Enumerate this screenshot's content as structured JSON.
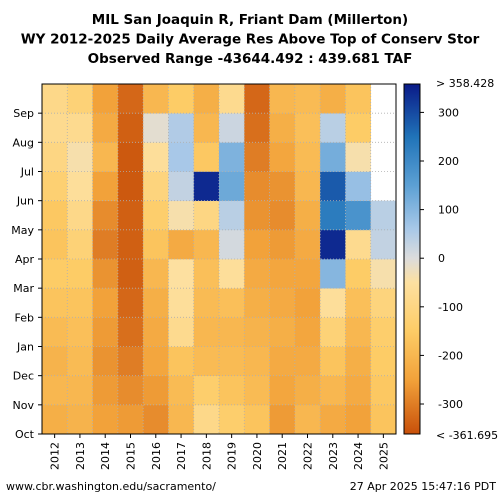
{
  "chart_data": {
    "type": "heatmap",
    "title_lines": [
      "MIL San Joaquin R, Friant Dam (Millerton)",
      "WY 2012-2025 Daily Average Res Above Top of Conserv Stor",
      "Observed Range -43644.492 : 439.681 TAF"
    ],
    "x_categories": [
      "2012",
      "2013",
      "2014",
      "2015",
      "2016",
      "2017",
      "2018",
      "2019",
      "2020",
      "2021",
      "2022",
      "2023",
      "2024",
      "2025"
    ],
    "y_months": [
      "Oct",
      "Nov",
      "Dec",
      "Jan",
      "Feb",
      "Mar",
      "Apr",
      "May",
      "Jun",
      "Jul",
      "Aug",
      "Sep"
    ],
    "colorbar": {
      "min": -361.695,
      "max": 358.428,
      "ticks": [
        300,
        200,
        100,
        0,
        -100,
        -200,
        -300
      ],
      "max_label": "> 358.428",
      "min_label": "< -361.695",
      "colormap_stops": [
        {
          "v": -361.695,
          "c": "#c8500a"
        },
        {
          "v": -250,
          "c": "#f2a23a"
        },
        {
          "v": -150,
          "c": "#fdcc66"
        },
        {
          "v": -50,
          "c": "#fde0a0"
        },
        {
          "v": 0,
          "c": "#dcdcdc"
        },
        {
          "v": 60,
          "c": "#a8c8e8"
        },
        {
          "v": 150,
          "c": "#5ca0d4"
        },
        {
          "v": 250,
          "c": "#2073b8"
        },
        {
          "v": 358.428,
          "c": "#0a1a88"
        }
      ]
    },
    "series": [
      {
        "name": "2012",
        "monthly": [
          -220,
          -200,
          -210,
          -190,
          -170,
          -150,
          -170,
          -160,
          -130,
          -100,
          -80,
          -90
        ]
      },
      {
        "name": "2013",
        "monthly": [
          -210,
          -200,
          -190,
          -180,
          -170,
          -150,
          -120,
          -90,
          -60,
          -40,
          -80,
          -120
        ]
      },
      {
        "name": "2014",
        "monthly": [
          -250,
          -260,
          -270,
          -260,
          -250,
          -270,
          -300,
          -280,
          -250,
          -200,
          -230,
          -250
        ]
      },
      {
        "name": "2015",
        "monthly": [
          -260,
          -280,
          -300,
          -320,
          -330,
          -340,
          -340,
          -340,
          -350,
          -350,
          -340,
          -330
        ]
      },
      {
        "name": "2016",
        "monthly": [
          -280,
          -260,
          -240,
          -230,
          -220,
          -200,
          -170,
          -140,
          -110,
          -60,
          -10,
          -200
        ]
      },
      {
        "name": "2017",
        "monthly": [
          -200,
          -190,
          -170,
          -80,
          -60,
          -50,
          -230,
          -40,
          30,
          60,
          50,
          -150
        ]
      },
      {
        "name": "2018",
        "monthly": [
          -90,
          -140,
          -190,
          -200,
          -190,
          -180,
          -200,
          -100,
          340,
          -160,
          -200,
          -220
        ]
      },
      {
        "name": "2019",
        "monthly": [
          -140,
          -170,
          -190,
          -200,
          -180,
          -60,
          10,
          40,
          130,
          110,
          20,
          -80
        ]
      },
      {
        "name": "2020",
        "monthly": [
          -170,
          -190,
          -200,
          -210,
          -220,
          -230,
          -250,
          -270,
          -280,
          -300,
          -320,
          -330
        ]
      },
      {
        "name": "2021",
        "monthly": [
          -260,
          -240,
          -230,
          -220,
          -230,
          -240,
          -260,
          -280,
          -270,
          -240,
          -220,
          -200
        ]
      },
      {
        "name": "2022",
        "monthly": [
          -200,
          -220,
          -230,
          -240,
          -250,
          -240,
          -230,
          -220,
          -200,
          -190,
          -180,
          -190
        ]
      },
      {
        "name": "2023",
        "monthly": [
          -230,
          -200,
          -170,
          -120,
          -60,
          100,
          340,
          230,
          280,
          120,
          40,
          -220
        ]
      },
      {
        "name": "2024",
        "monthly": [
          -250,
          -230,
          -220,
          -200,
          -180,
          -150,
          -80,
          180,
          80,
          -40,
          -150,
          -170
        ]
      },
      {
        "name": "2025",
        "monthly": [
          -170,
          -160,
          -150,
          -140,
          -110,
          -40,
          30,
          40,
          null,
          null,
          null,
          null
        ]
      }
    ],
    "footer_left": "www.cbr.washington.edu/sacramento/",
    "footer_right": "27 Apr 2025 15:47:16 PDT"
  }
}
